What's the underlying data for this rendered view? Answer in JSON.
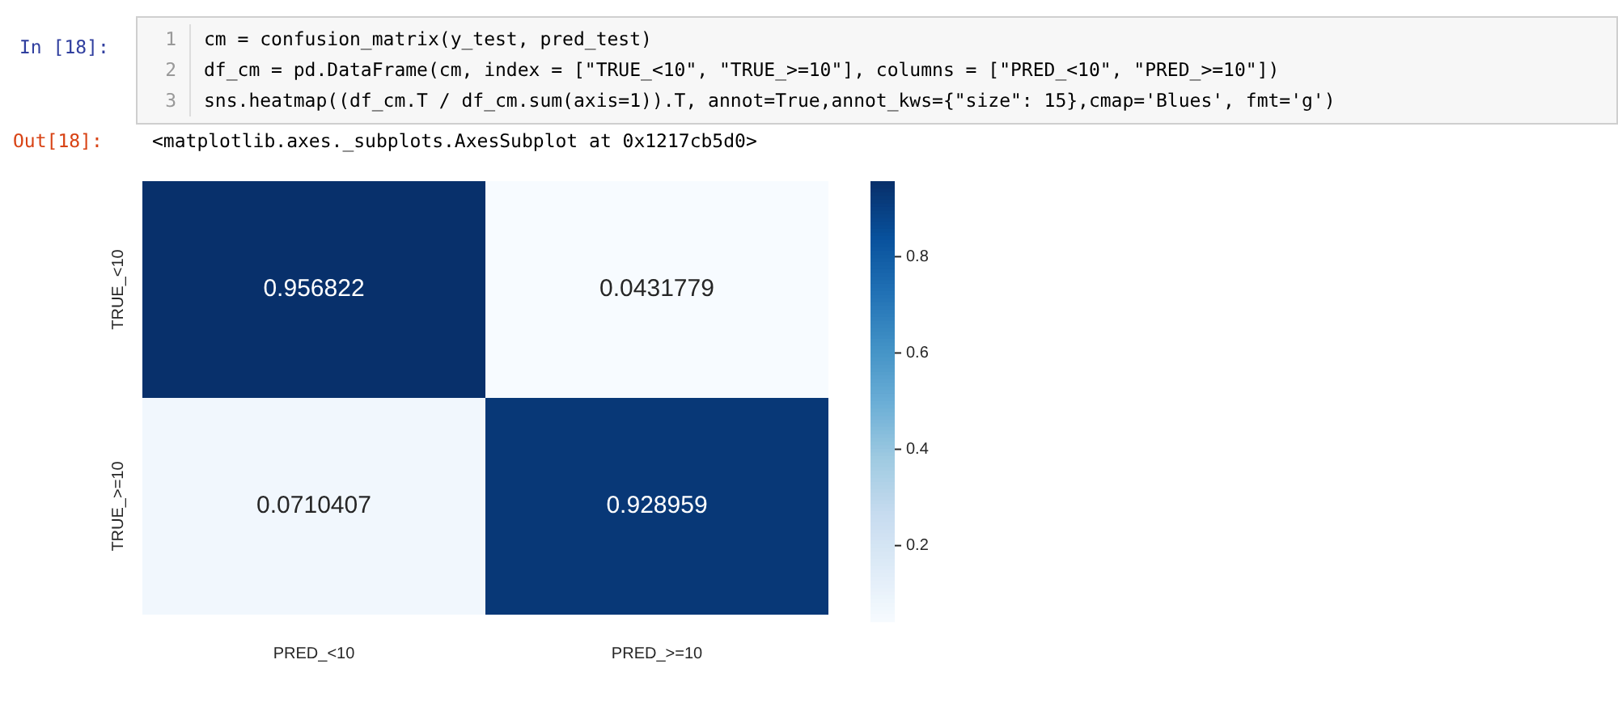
{
  "chart_data": {
    "type": "heatmap",
    "categories": [
      "PRED_<10",
      "PRED_>=10"
    ],
    "y_categories": [
      "TRUE_<10",
      "TRUE_>=10"
    ],
    "cells": [
      [
        0.956822,
        0.0431779
      ],
      [
        0.0710407,
        0.928959
      ]
    ],
    "data_labels": true,
    "clim": [
      0.0431779,
      0.956822
    ],
    "cticks": [
      0.2,
      0.4,
      0.6,
      0.8
    ],
    "annotations": [
      "In [18]:",
      "1",
      "cm = confusion_matrix(y_test, pred_test)",
      "2",
      "df_cm = pd.DataFrame(cm, index = [\"TRUE_<10\", \"TRUE_>=10\"], columns = [\"PRED_<10\", \"PRED_>=10\"])",
      "3",
      "sns.heatmap((df_cm.T / df_cm.sum(axis=1)).T, annot=True,annot_kws={\"size\": 15},cmap='Blues', fmt='g')",
      "Out[18]:",
      "<matplotlib.axes._subplots.AxesSubplot at 0x1217cb5d0>"
    ]
  }
}
